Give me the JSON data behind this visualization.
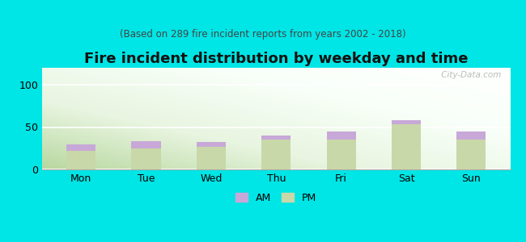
{
  "title": "Fire incident distribution by weekday and time",
  "subtitle": "(Based on 289 fire incident reports from years 2002 - 2018)",
  "categories": [
    "Mon",
    "Tue",
    "Wed",
    "Thu",
    "Fri",
    "Sat",
    "Sun"
  ],
  "pm_values": [
    22,
    25,
    27,
    35,
    35,
    53,
    35
  ],
  "am_values": [
    8,
    8,
    5,
    5,
    10,
    5,
    10
  ],
  "am_color": "#c8a8d8",
  "pm_color": "#c8d8a8",
  "background_color": "#00e5e5",
  "ylim": [
    0,
    120
  ],
  "yticks": [
    0,
    50,
    100
  ],
  "bar_width": 0.45,
  "title_fontsize": 13,
  "subtitle_fontsize": 8.5,
  "tick_fontsize": 9,
  "legend_fontsize": 9,
  "watermark": " City-Data.com"
}
